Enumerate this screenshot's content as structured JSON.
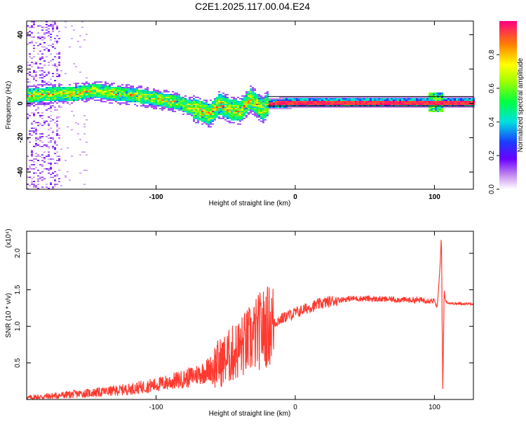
{
  "title": "C2E1.2025.117.00.04.E24",
  "colors": {
    "snr_line": "#ff3a30",
    "axis": "#000000",
    "background": "#ffffff"
  },
  "chart_data": [
    {
      "type": "heatmap",
      "xlabel": "Height of straight line (km)",
      "ylabel": "Frequency (Hz)",
      "xlim": [
        -193,
        128
      ],
      "ylim": [
        -50,
        48
      ],
      "xticks": [
        "-100",
        "0",
        "100"
      ],
      "yticks": [
        "-40",
        "-20",
        "0",
        "20",
        "40"
      ],
      "colorbar": {
        "label": "Normalized spectral amplitude",
        "range": [
          0,
          1
        ],
        "ticks": [
          "0.0",
          "0.2",
          "0.4",
          "0.6",
          "0.8"
        ],
        "colormap": "rainbow"
      },
      "ridge": {
        "x": [
          -190,
          -175,
          -160,
          -145,
          -130,
          -115,
          -100,
          -85,
          -72,
          -62,
          -55,
          -48,
          -40,
          -33,
          -28,
          -24,
          -21,
          0,
          25,
          50,
          75,
          100,
          128
        ],
        "y": [
          5,
          6,
          6,
          8,
          6,
          5,
          3,
          1,
          -3,
          -6,
          0,
          -3,
          -4,
          3,
          0,
          -4,
          0,
          1,
          1,
          1,
          1,
          1,
          1
        ]
      }
    },
    {
      "type": "line",
      "xlabel": "Height of straight line (km)",
      "ylabel": "SNR (10 * v/v)",
      "y_multiplier": "(x10⁴)",
      "xlim": [
        -193,
        128
      ],
      "ylim": [
        0,
        2.3
      ],
      "xticks": [
        "-100",
        "0",
        "100"
      ],
      "yticks": [
        "0.5",
        "1.0",
        "1.5",
        "2.0"
      ],
      "series": [
        {
          "x": [
            -193,
            -180,
            -160,
            -140,
            -120,
            -100,
            -80,
            -65,
            -50,
            -40,
            -30,
            -25,
            -20,
            -15,
            -10,
            -5,
            0,
            10,
            20,
            30,
            40,
            50,
            60,
            70,
            80,
            90,
            100,
            102,
            104,
            105,
            106,
            107,
            108,
            110,
            115,
            128
          ],
          "y": [
            0.02,
            0.04,
            0.07,
            0.1,
            0.14,
            0.2,
            0.28,
            0.38,
            0.55,
            0.7,
            0.85,
            0.95,
            1.0,
            1.05,
            1.1,
            1.15,
            1.18,
            1.26,
            1.32,
            1.36,
            1.38,
            1.38,
            1.37,
            1.37,
            1.36,
            1.36,
            1.35,
            1.25,
            1.8,
            2.25,
            0.1,
            1.5,
            1.35,
            1.32,
            1.31,
            1.31
          ]
        }
      ]
    }
  ]
}
